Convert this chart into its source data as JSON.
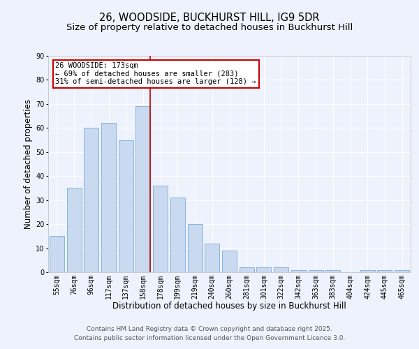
{
  "title1": "26, WOODSIDE, BUCKHURST HILL, IG9 5DR",
  "title2": "Size of property relative to detached houses in Buckhurst Hill",
  "xlabel": "Distribution of detached houses by size in Buckhurst Hill",
  "ylabel": "Number of detached properties",
  "categories": [
    "55sqm",
    "76sqm",
    "96sqm",
    "117sqm",
    "137sqm",
    "158sqm",
    "178sqm",
    "199sqm",
    "219sqm",
    "240sqm",
    "260sqm",
    "281sqm",
    "301sqm",
    "322sqm",
    "342sqm",
    "363sqm",
    "383sqm",
    "404sqm",
    "424sqm",
    "445sqm",
    "465sqm"
  ],
  "values": [
    15,
    35,
    60,
    62,
    55,
    69,
    36,
    31,
    20,
    12,
    9,
    2,
    2,
    2,
    1,
    1,
    1,
    0,
    1,
    1,
    1
  ],
  "bar_color": "#c8d9f0",
  "bar_edge_color": "#7aadd6",
  "bar_edge_width": 0.6,
  "red_line_color": "#bb0000",
  "annotation_text": "26 WOODSIDE: 173sqm\n← 69% of detached houses are smaller (283)\n31% of semi-detached houses are larger (128) →",
  "annotation_box_color": "#ffffff",
  "annotation_box_edge": "#cc0000",
  "ylim": [
    0,
    90
  ],
  "yticks": [
    0,
    10,
    20,
    30,
    40,
    50,
    60,
    70,
    80,
    90
  ],
  "background_color": "#eef2fc",
  "plot_bg_color": "#eef2fc",
  "grid_color": "#ffffff",
  "footer_line1": "Contains HM Land Registry data © Crown copyright and database right 2025.",
  "footer_line2": "Contains public sector information licensed under the Open Government Licence 3.0.",
  "title_fontsize": 10.5,
  "subtitle_fontsize": 9.5,
  "axis_label_fontsize": 8.5,
  "tick_fontsize": 7,
  "annotation_fontsize": 7.5,
  "footer_fontsize": 6.5
}
